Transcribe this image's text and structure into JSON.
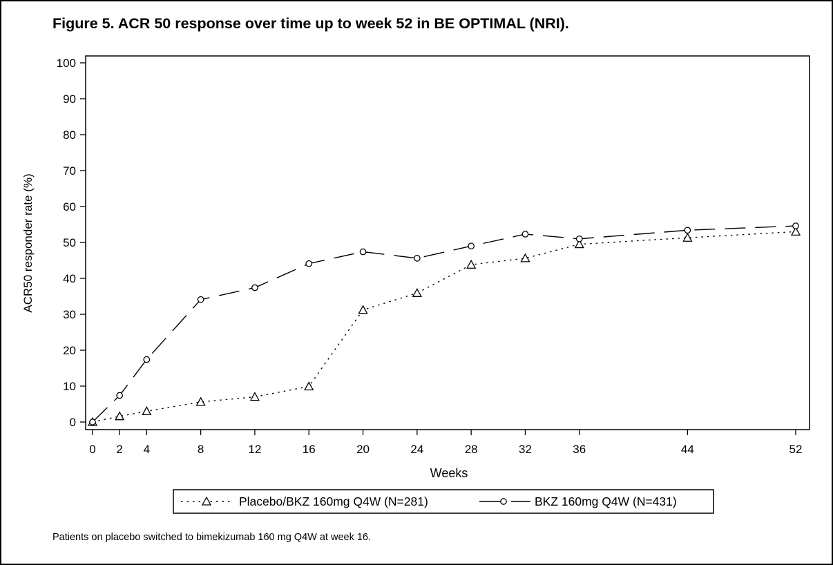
{
  "figure": {
    "title": "Figure 5. ACR 50 response over time up to week 52 in BE OPTIMAL (NRI).",
    "footnote": "Patients on placebo switched to bimekizumab 160 mg Q4W at week 16."
  },
  "chart_data": {
    "type": "line",
    "title": "Figure 5. ACR 50 response over time up to week 52 in BE OPTIMAL (NRI).",
    "xlabel": "Weeks",
    "ylabel": "ACR50 responder rate (%)",
    "x": [
      0,
      2,
      4,
      8,
      12,
      16,
      20,
      24,
      28,
      32,
      36,
      44,
      52
    ],
    "x_tick_labels": [
      "0",
      "2",
      "4",
      "8",
      "12",
      "16",
      "20",
      "24",
      "28",
      "32",
      "36",
      "44",
      "52"
    ],
    "y_ticks": [
      0,
      10,
      20,
      30,
      40,
      50,
      60,
      70,
      80,
      90,
      100
    ],
    "y_tick_labels": [
      "0",
      "10",
      "20",
      "30",
      "40",
      "50",
      "60",
      "70",
      "80",
      "90",
      "100"
    ],
    "xlim": [
      0,
      52
    ],
    "ylim": [
      0,
      100
    ],
    "grid": false,
    "legend_position": "bottom-center",
    "series": [
      {
        "name": "Placebo/BKZ 160mg Q4W (N=281)",
        "marker": "triangle",
        "line_style": "dotted",
        "color": "#000000",
        "values": [
          0,
          1.6,
          3.0,
          5.6,
          7.0,
          9.9,
          31.2,
          35.9,
          43.8,
          45.6,
          49.5,
          51.3,
          53.0
        ]
      },
      {
        "name": "BKZ 160mg Q4W (N=431)",
        "marker": "circle",
        "line_style": "long-dash",
        "color": "#000000",
        "values": [
          0,
          7.4,
          17.4,
          34.1,
          37.4,
          44.1,
          47.4,
          45.6,
          49.0,
          52.3,
          51.0,
          53.4,
          54.6
        ]
      }
    ]
  }
}
